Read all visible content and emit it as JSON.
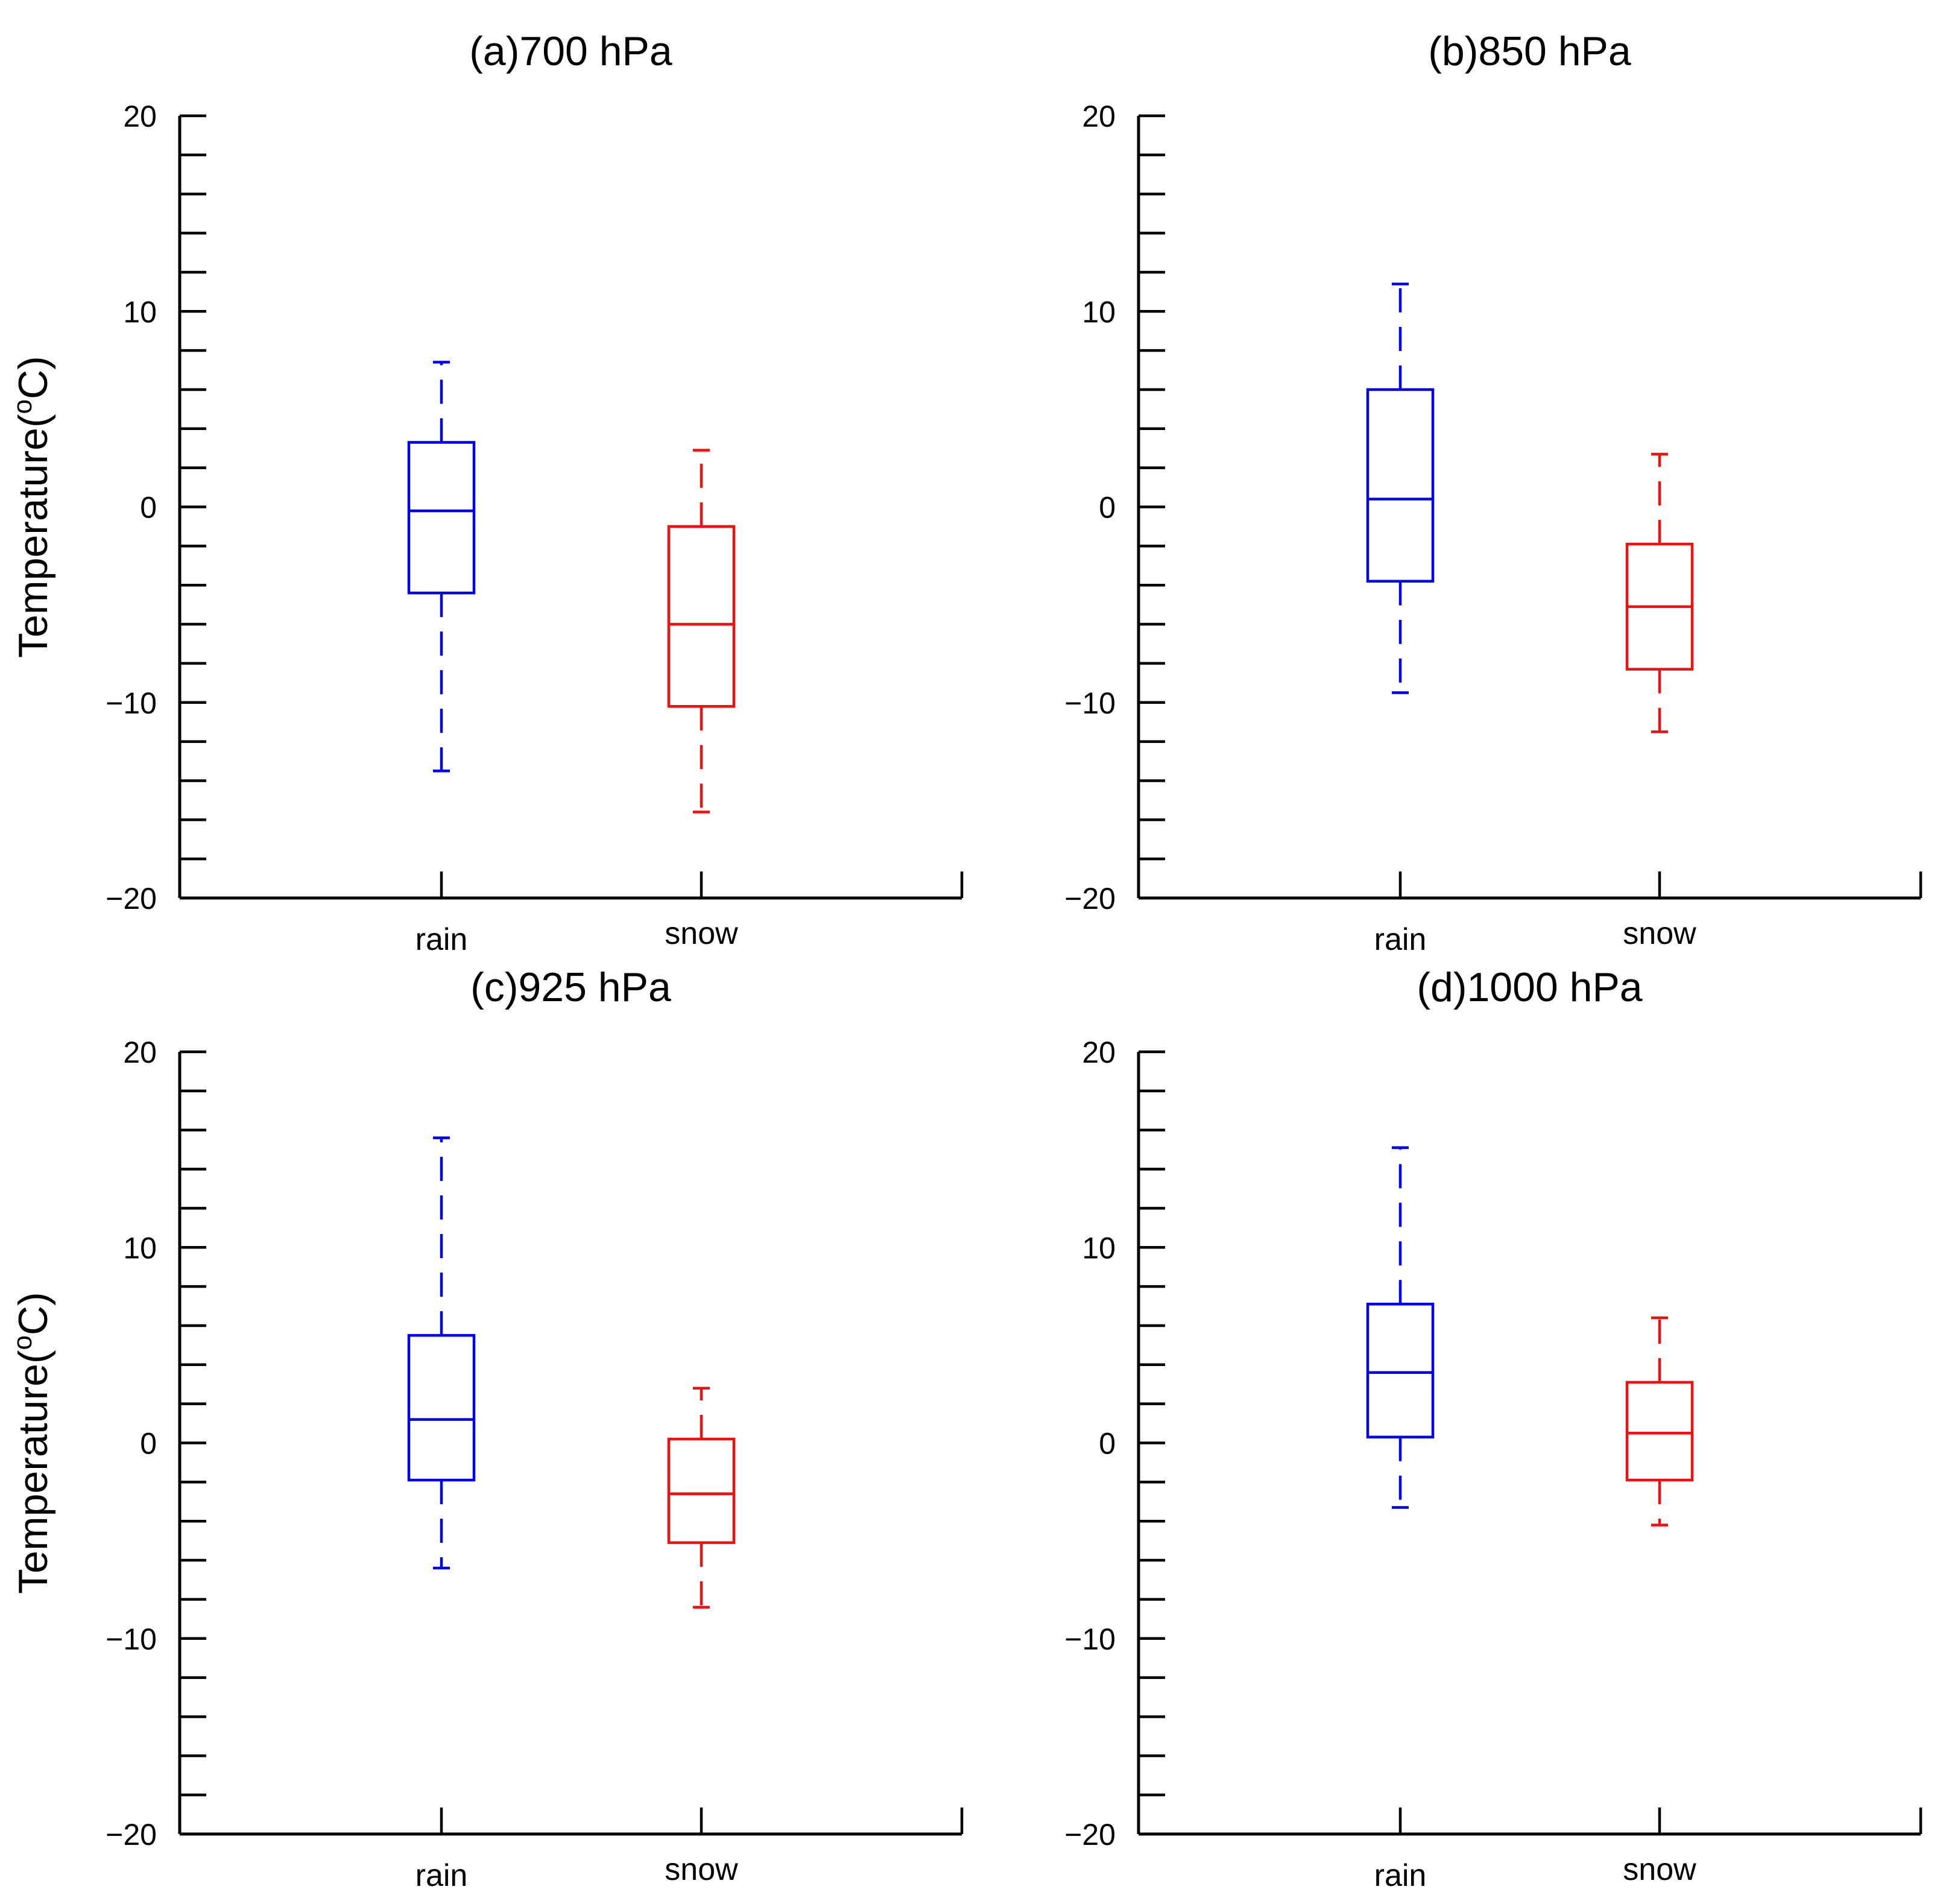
{
  "figure": {
    "colors": {
      "rain": "#0000ee",
      "snow": "#ee1111",
      "axis": "#000000"
    }
  },
  "chart_data": [
    {
      "type": "boxplot",
      "title": "(a)700 hPa",
      "ylabel": "Temperature(oC)",
      "ylabel_parts": {
        "main": "Temperature(",
        "superscript": "o",
        "unit": "C)"
      },
      "ylim": [
        -20,
        20
      ],
      "yticks": [
        -20,
        -10,
        0,
        10,
        20
      ],
      "ytick_labels": [
        "−20",
        "−10",
        "0",
        "10",
        "20"
      ],
      "categories": [
        "rain",
        "snow"
      ],
      "series": [
        {
          "name": "rain",
          "color": "#0000ee",
          "whisker_low": -13.5,
          "q1": -4.4,
          "median": -0.2,
          "q3": 3.3,
          "whisker_high": 7.4
        },
        {
          "name": "snow",
          "color": "#ee1111",
          "whisker_low": -15.6,
          "q1": -10.2,
          "median": -6.0,
          "q3": -1.0,
          "whisker_high": 2.9
        }
      ]
    },
    {
      "type": "boxplot",
      "title": "(b)850 hPa",
      "ylabel": "",
      "ylim": [
        -20,
        20
      ],
      "yticks": [
        -20,
        -10,
        0,
        10,
        20
      ],
      "ytick_labels": [
        "−20",
        "−10",
        "0",
        "10",
        "20"
      ],
      "categories": [
        "rain",
        "snow"
      ],
      "series": [
        {
          "name": "rain",
          "color": "#0000ee",
          "whisker_low": -9.5,
          "q1": -3.8,
          "median": 0.4,
          "q3": 6.0,
          "whisker_high": 11.4
        },
        {
          "name": "snow",
          "color": "#ee1111",
          "whisker_low": -11.5,
          "q1": -8.3,
          "median": -5.1,
          "q3": -1.9,
          "whisker_high": 2.7
        }
      ]
    },
    {
      "type": "boxplot",
      "title": "(c)925 hPa",
      "ylabel": "Temperature(oC)",
      "ylabel_parts": {
        "main": "Temperature(",
        "superscript": "o",
        "unit": "C)"
      },
      "ylim": [
        -20,
        20
      ],
      "yticks": [
        -20,
        -10,
        0,
        10,
        20
      ],
      "ytick_labels": [
        "−20",
        "−10",
        "0",
        "10",
        "20"
      ],
      "categories": [
        "rain",
        "snow"
      ],
      "series": [
        {
          "name": "rain",
          "color": "#0000ee",
          "whisker_low": -6.4,
          "q1": -1.9,
          "median": 1.2,
          "q3": 5.5,
          "whisker_high": 15.6
        },
        {
          "name": "snow",
          "color": "#ee1111",
          "whisker_low": -8.4,
          "q1": -5.1,
          "median": -2.6,
          "q3": 0.2,
          "whisker_high": 2.8
        }
      ]
    },
    {
      "type": "boxplot",
      "title": "(d)1000 hPa",
      "ylabel": "",
      "ylim": [
        -20,
        20
      ],
      "yticks": [
        -20,
        -10,
        0,
        10,
        20
      ],
      "ytick_labels": [
        "−20",
        "−10",
        "0",
        "10",
        "20"
      ],
      "categories": [
        "rain",
        "snow"
      ],
      "series": [
        {
          "name": "rain",
          "color": "#0000ee",
          "whisker_low": -3.3,
          "q1": 0.3,
          "median": 3.6,
          "q3": 7.1,
          "whisker_high": 15.1
        },
        {
          "name": "snow",
          "color": "#ee1111",
          "whisker_low": -4.2,
          "q1": -1.9,
          "median": 0.5,
          "q3": 3.1,
          "whisker_high": 6.4
        }
      ]
    }
  ]
}
